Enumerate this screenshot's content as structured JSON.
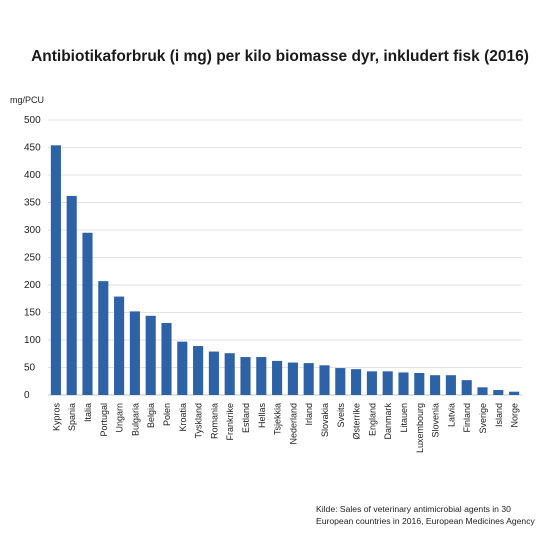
{
  "chart_data": {
    "type": "bar",
    "title": "Antibiotikaforbruk (i mg) per kilo biomasse dyr, inkludert fisk (2016)",
    "ylabel": "mg/PCU",
    "xlabel": "",
    "ylim": [
      0,
      500
    ],
    "yticks": [
      "500",
      "450",
      "400",
      "350",
      "300",
      "250",
      "200",
      "150",
      "100",
      "50",
      "0"
    ],
    "grid": true,
    "bar_color": "#2e62a6",
    "categories": [
      "Kypros",
      "Spania",
      "Italia",
      "Portugal",
      "Ungarn",
      "Bulgaria",
      "Belgia",
      "Polen",
      "Kroatia",
      "Tyskland",
      "Romania",
      "Frankrike",
      "Estland",
      "Hellas",
      "Tsjekkia",
      "Nederland",
      "Irland",
      "Slovakia",
      "Sveits",
      "Østerrike",
      "England",
      "Danmark",
      "Litauen",
      "Luxembourg",
      "Slovenia",
      "Latvia",
      "Finland",
      "Sverige",
      "Island",
      "Norge"
    ],
    "values": [
      454,
      362,
      295,
      207,
      179,
      152,
      144,
      131,
      97,
      89,
      79,
      76,
      69,
      69,
      62,
      59,
      58,
      54,
      49,
      47,
      43,
      43,
      41,
      40,
      36,
      36,
      27,
      14,
      9,
      6
    ]
  },
  "source": {
    "line1": "Kilde: Sales of veterinary antimicrobial agents in 30",
    "line2": "European countries in 2016, European Medicines Agency"
  }
}
